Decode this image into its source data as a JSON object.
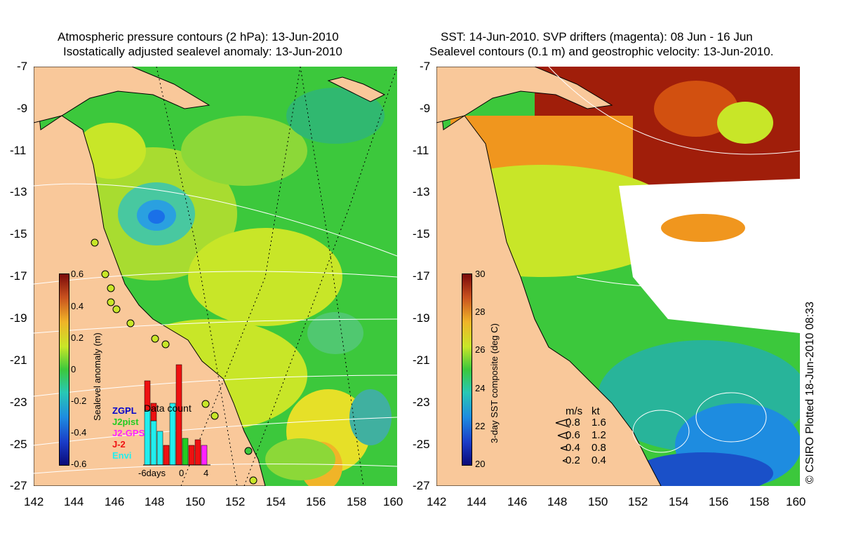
{
  "left_panel": {
    "title_line1": "Atmospheric pressure contours (2 hPa): 13-Jun-2010",
    "title_line2": "Isostatically adjusted sealevel anomaly: 13-Jun-2010",
    "colorbar": {
      "label": "Sealevel anomaly (m)",
      "ticks": [
        "0.6",
        "0.4",
        "0.2",
        "0",
        "-0.2",
        "-0.4",
        "-0.6"
      ]
    },
    "data_count": {
      "title": "Data count",
      "legend": [
        {
          "label": "ZGPL",
          "color": "#0000cc"
        },
        {
          "label": "J2pist",
          "color": "#22cc22"
        },
        {
          "label": "J2-GPS",
          "color": "#ff22ff"
        },
        {
          "label": "J-2",
          "color": "#ee1111"
        },
        {
          "label": "Envi",
          "color": "#22eeee"
        }
      ],
      "axis_labels": [
        "-6days",
        "0",
        "4"
      ]
    }
  },
  "right_panel": {
    "title_line1": "SST: 14-Jun-2010. SVP drifters (magenta): 08 Jun - 16 Jun",
    "title_line2": "Sealevel contours (0.1 m) and geostrophic velocity: 13-Jun-2010.",
    "colorbar": {
      "label": "3-day SST composite (deg C)",
      "ticks": [
        "30",
        "28",
        "26",
        "24",
        "22",
        "20"
      ]
    },
    "velocity_legend": {
      "header_ms": "m/s",
      "header_kt": "kt",
      "rows": [
        {
          "ms": "0.8",
          "kt": "1.6"
        },
        {
          "ms": "0.6",
          "kt": "1.2"
        },
        {
          "ms": "0.4",
          "kt": "0.8"
        },
        {
          "ms": "0.2",
          "kt": "0.4"
        }
      ]
    }
  },
  "axes": {
    "y_labels": [
      "-7",
      "-9",
      "-11",
      "-13",
      "-15",
      "-17",
      "-19",
      "-21",
      "-23",
      "-25",
      "-27"
    ],
    "x_labels": [
      "142",
      "144",
      "146",
      "148",
      "150",
      "152",
      "154",
      "156",
      "158",
      "160"
    ]
  },
  "credit": "© CSIRO Plotted 18-Jun-2010 08:33",
  "colors": {
    "land": "#f9c89a",
    "sea_green": "#3cc83c",
    "sea_yellow": "#c8e628",
    "sst_red": "#a01e0a",
    "sst_orange": "#f0961e",
    "cloud": "#ffffff"
  }
}
